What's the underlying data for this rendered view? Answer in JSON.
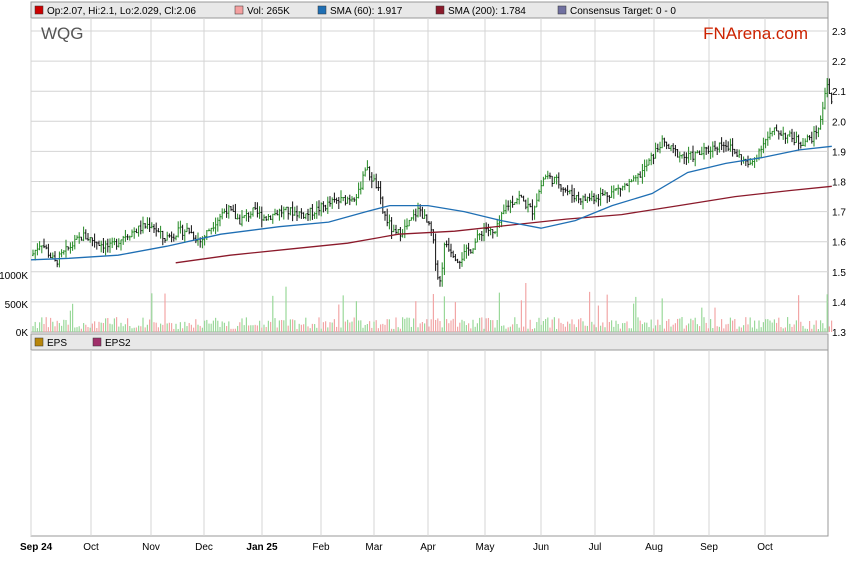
{
  "ticker": "WQG",
  "brand": "FNArena.com",
  "legend": {
    "ohlc": {
      "label": "Op:2.07, Hi:2.1, Lo:2.029, Cl:2.06",
      "color": "#cc0000"
    },
    "vol": {
      "label": "Vol: 265K",
      "color": "#f4a0a0"
    },
    "sma60": {
      "label": "SMA (60): 1.917",
      "color": "#1f6fb4"
    },
    "sma200": {
      "label": "SMA (200): 1.784",
      "color": "#8b1a2b"
    },
    "target": {
      "label": "Consensus Target: 0 - 0",
      "color": "#7070a0"
    }
  },
  "lower_legend": {
    "eps": {
      "label": "EPS",
      "color": "#b8860b"
    },
    "eps2": {
      "label": "EPS2",
      "color": "#a0306a"
    }
  },
  "chart_data": {
    "type": "line",
    "price_axis": {
      "ticks": [
        "1.3",
        "1.4",
        "1.5",
        "1.6",
        "1.7",
        "1.8",
        "1.9",
        "2.0",
        "2.1",
        "2.2",
        "2.3"
      ],
      "range": [
        1.3,
        2.3
      ]
    },
    "volume_axis": {
      "ticks": [
        "0K",
        "500K",
        "1000K"
      ]
    },
    "x_ticks": [
      {
        "label": "Sep 24",
        "bold": true
      },
      {
        "label": "Oct",
        "bold": false
      },
      {
        "label": "Nov",
        "bold": false
      },
      {
        "label": "Dec",
        "bold": false
      },
      {
        "label": "Jan 25",
        "bold": true
      },
      {
        "label": "Feb",
        "bold": false
      },
      {
        "label": "Mar",
        "bold": false
      },
      {
        "label": "Apr",
        "bold": false
      },
      {
        "label": "May",
        "bold": false
      },
      {
        "label": "Jun",
        "bold": false
      },
      {
        "label": "Jul",
        "bold": false
      },
      {
        "label": "Aug",
        "bold": false
      },
      {
        "label": "Sep",
        "bold": false
      },
      {
        "label": "Oct",
        "bold": false
      }
    ],
    "price_points": [
      [
        "2024-09-01",
        1.55
      ],
      [
        "2024-09-06",
        1.6
      ],
      [
        "2024-09-13",
        1.53
      ],
      [
        "2024-09-20",
        1.58
      ],
      [
        "2024-09-27",
        1.62
      ],
      [
        "2024-10-04",
        1.6
      ],
      [
        "2024-10-11",
        1.58
      ],
      [
        "2024-10-18",
        1.62
      ],
      [
        "2024-10-25",
        1.64
      ],
      [
        "2024-11-01",
        1.66
      ],
      [
        "2024-11-08",
        1.61
      ],
      [
        "2024-11-15",
        1.63
      ],
      [
        "2024-11-22",
        1.64
      ],
      [
        "2024-11-29",
        1.6
      ],
      [
        "2024-12-06",
        1.66
      ],
      [
        "2024-12-13",
        1.71
      ],
      [
        "2024-12-20",
        1.67
      ],
      [
        "2024-12-27",
        1.7
      ],
      [
        "2025-01-03",
        1.68
      ],
      [
        "2025-01-10",
        1.7
      ],
      [
        "2025-01-17",
        1.7
      ],
      [
        "2025-01-24",
        1.69
      ],
      [
        "2025-01-31",
        1.71
      ],
      [
        "2025-02-07",
        1.73
      ],
      [
        "2025-02-14",
        1.74
      ],
      [
        "2025-02-21",
        1.76
      ],
      [
        "2025-02-24",
        1.85
      ],
      [
        "2025-03-03",
        1.78
      ],
      [
        "2025-03-06",
        1.7
      ],
      [
        "2025-03-13",
        1.62
      ],
      [
        "2025-03-20",
        1.65
      ],
      [
        "2025-03-27",
        1.71
      ],
      [
        "2025-04-03",
        1.63
      ],
      [
        "2025-04-07",
        1.45
      ],
      [
        "2025-04-10",
        1.6
      ],
      [
        "2025-04-17",
        1.54
      ],
      [
        "2025-04-24",
        1.58
      ],
      [
        "2025-05-01",
        1.65
      ],
      [
        "2025-05-06",
        1.62
      ],
      [
        "2025-05-13",
        1.72
      ],
      [
        "2025-05-20",
        1.75
      ],
      [
        "2025-05-27",
        1.7
      ],
      [
        "2025-06-03",
        1.82
      ],
      [
        "2025-06-10",
        1.8
      ],
      [
        "2025-06-17",
        1.76
      ],
      [
        "2025-06-24",
        1.74
      ],
      [
        "2025-07-01",
        1.75
      ],
      [
        "2025-07-08",
        1.76
      ],
      [
        "2025-07-15",
        1.78
      ],
      [
        "2025-07-22",
        1.8
      ],
      [
        "2025-07-29",
        1.86
      ],
      [
        "2025-08-05",
        1.93
      ],
      [
        "2025-08-12",
        1.9
      ],
      [
        "2025-08-19",
        1.88
      ],
      [
        "2025-08-26",
        1.89
      ],
      [
        "2025-09-02",
        1.91
      ],
      [
        "2025-09-09",
        1.93
      ],
      [
        "2025-09-16",
        1.89
      ],
      [
        "2025-09-23",
        1.85
      ],
      [
        "2025-09-30",
        1.93
      ],
      [
        "2025-10-07",
        1.97
      ],
      [
        "2025-10-14",
        1.95
      ],
      [
        "2025-10-21",
        1.93
      ],
      [
        "2025-10-28",
        1.95
      ],
      [
        "2025-11-01",
        2.0
      ],
      [
        "2025-11-04",
        2.14
      ],
      [
        "2025-11-07",
        2.06
      ]
    ],
    "sma60_points": [
      [
        "2024-09-01",
        1.54
      ],
      [
        "2024-09-20",
        1.545
      ],
      [
        "2024-10-15",
        1.555
      ],
      [
        "2024-11-10",
        1.585
      ],
      [
        "2024-12-10",
        1.625
      ],
      [
        "2025-01-10",
        1.65
      ],
      [
        "2025-02-05",
        1.665
      ],
      [
        "2025-02-25",
        1.7
      ],
      [
        "2025-03-10",
        1.72
      ],
      [
        "2025-04-01",
        1.72
      ],
      [
        "2025-04-20",
        1.7
      ],
      [
        "2025-05-10",
        1.67
      ],
      [
        "2025-06-01",
        1.645
      ],
      [
        "2025-06-20",
        1.67
      ],
      [
        "2025-07-10",
        1.72
      ],
      [
        "2025-07-31",
        1.76
      ],
      [
        "2025-08-20",
        1.83
      ],
      [
        "2025-09-10",
        1.86
      ],
      [
        "2025-09-30",
        1.88
      ],
      [
        "2025-10-20",
        1.905
      ],
      [
        "2025-11-07",
        1.917
      ]
    ],
    "sma200_points": [
      [
        "2024-11-15",
        1.53
      ],
      [
        "2024-12-15",
        1.555
      ],
      [
        "2025-01-15",
        1.575
      ],
      [
        "2025-02-15",
        1.595
      ],
      [
        "2025-03-15",
        1.625
      ],
      [
        "2025-04-15",
        1.635
      ],
      [
        "2025-05-15",
        1.655
      ],
      [
        "2025-06-15",
        1.675
      ],
      [
        "2025-07-15",
        1.69
      ],
      [
        "2025-08-15",
        1.72
      ],
      [
        "2025-09-15",
        1.75
      ],
      [
        "2025-10-15",
        1.77
      ],
      [
        "2025-11-07",
        1.784
      ]
    ]
  }
}
